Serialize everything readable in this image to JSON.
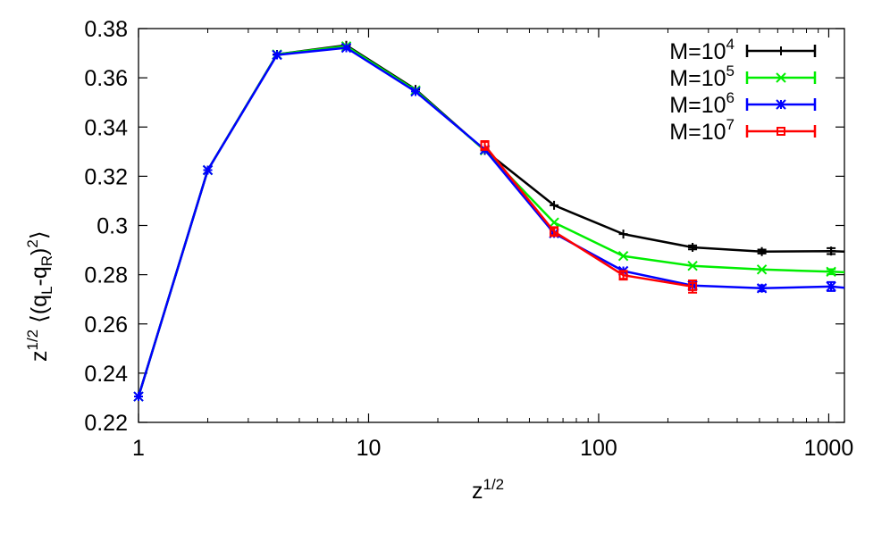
{
  "chart_data": {
    "type": "line",
    "xscale": "log",
    "xlim": [
      1,
      1170
    ],
    "ylim": [
      0.22,
      0.38
    ],
    "xticks": [
      1,
      10,
      100,
      1000
    ],
    "xtick_labels": [
      "1",
      "10",
      "100",
      "1000"
    ],
    "yticks": [
      0.22,
      0.24,
      0.26,
      0.28,
      0.3,
      0.32,
      0.34,
      0.36,
      0.38
    ],
    "ytick_labels": [
      "0.22",
      "0.24",
      "0.26",
      "0.28",
      "0.3",
      "0.32",
      "0.34",
      "0.36",
      "0.38"
    ],
    "xlabel": "z^{1/2}",
    "ylabel": "z^{1/2} ⟨(q_L-q_R)^2⟩",
    "legend_position": "top-right",
    "grid": false,
    "series": [
      {
        "name": "M=10^4",
        "color": "#000000",
        "marker": "plus",
        "x": [
          1,
          2,
          4,
          8,
          16,
          32,
          64,
          128,
          256,
          512,
          1024,
          1170
        ],
        "y": [
          0.2305,
          0.3225,
          0.3695,
          0.3732,
          0.3553,
          0.3305,
          0.3082,
          0.2965,
          0.2911,
          0.2894,
          0.2896,
          0.2894
        ],
        "err": [
          0,
          0,
          0,
          0,
          0,
          0,
          0,
          0,
          0.0008,
          0.0008,
          0.0012,
          0
        ]
      },
      {
        "name": "M=10^5",
        "color": "#00ee00",
        "marker": "cross",
        "x": [
          1,
          2,
          4,
          8,
          16,
          32,
          64,
          128,
          256,
          512,
          1024,
          1170
        ],
        "y": [
          0.2305,
          0.3225,
          0.3695,
          0.3728,
          0.3549,
          0.3305,
          0.3012,
          0.2876,
          0.2836,
          0.2821,
          0.2812,
          0.281
        ],
        "err": [
          0,
          0,
          0,
          0,
          0,
          0,
          0,
          0,
          0,
          0,
          0.001,
          0
        ]
      },
      {
        "name": "M=10^6",
        "color": "#0000ff",
        "marker": "star",
        "x": [
          1,
          2,
          4,
          8,
          16,
          32,
          64,
          128,
          256,
          512,
          1024,
          1170
        ],
        "y": [
          0.2305,
          0.3225,
          0.3693,
          0.3722,
          0.3544,
          0.3308,
          0.2968,
          0.2815,
          0.2756,
          0.2745,
          0.2752,
          0.2747
        ],
        "err": [
          0,
          0,
          0,
          0,
          0,
          0,
          0,
          0,
          0.0018,
          0.0012,
          0.0018,
          0
        ]
      },
      {
        "name": "M=10^7",
        "color": "#ff0000",
        "marker": "square",
        "x": [
          32,
          64,
          128,
          256
        ],
        "y": [
          0.3325,
          0.2975,
          0.2798,
          0.2752
        ],
        "err": [
          0.0018,
          0.0018,
          0.0018,
          0.0025
        ]
      }
    ]
  }
}
